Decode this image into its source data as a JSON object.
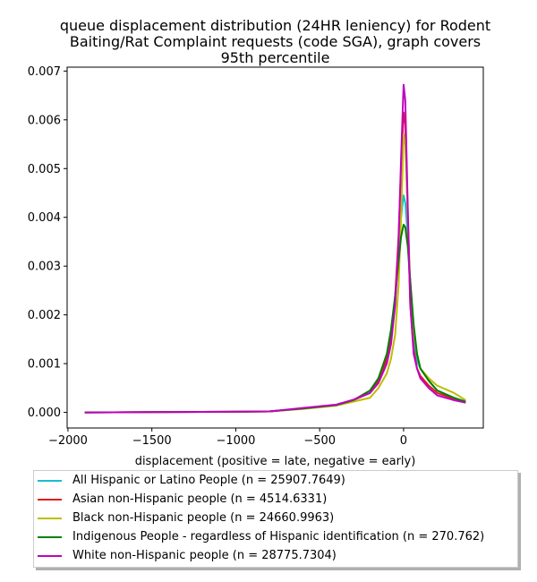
{
  "chart_data": {
    "type": "line",
    "title_lines": [
      "queue displacement distribution (24HR leniency) for Rodent",
      "Baiting/Rat Complaint  requests (code SGA), graph covers",
      "95th percentile"
    ],
    "xlabel": "displacement (positive = late, negative = early)",
    "ylabel": "",
    "xlim": [
      -2005,
      475
    ],
    "ylim": [
      -0.00032,
      0.00708
    ],
    "x_ticks": [
      -2000,
      -1500,
      -1000,
      -500,
      0
    ],
    "x_tick_labels": [
      "−2000",
      "−1500",
      "−1000",
      "−500",
      "0"
    ],
    "y_ticks": [
      0,
      0.001,
      0.002,
      0.003,
      0.004,
      0.005,
      0.006,
      0.007
    ],
    "y_tick_labels": [
      "0.000",
      "0.001",
      "0.002",
      "0.003",
      "0.004",
      "0.005",
      "0.006",
      "0.007"
    ],
    "grid": false,
    "legend_position": "below",
    "series": [
      {
        "name": "All Hispanic or Latino People (n = 25907.7649)",
        "color": "#17becf",
        "points": [
          [
            -1900,
            0
          ],
          [
            -1500,
            5e-06
          ],
          [
            -1200,
            1e-05
          ],
          [
            -800,
            2e-05
          ],
          [
            -600,
            8e-05
          ],
          [
            -400,
            0.00015
          ],
          [
            -300,
            0.00025
          ],
          [
            -200,
            0.0004
          ],
          [
            -150,
            0.00065
          ],
          [
            -100,
            0.0011
          ],
          [
            -75,
            0.0015
          ],
          [
            -50,
            0.0023
          ],
          [
            -30,
            0.0032
          ],
          [
            -15,
            0.004
          ],
          [
            0,
            0.00445
          ],
          [
            10,
            0.0043
          ],
          [
            25,
            0.0036
          ],
          [
            40,
            0.0024
          ],
          [
            60,
            0.0015
          ],
          [
            80,
            0.00105
          ],
          [
            100,
            0.0009
          ],
          [
            150,
            0.00065
          ],
          [
            200,
            0.00045
          ],
          [
            300,
            0.0003
          ],
          [
            370,
            0.00022
          ]
        ]
      },
      {
        "name": "Asian non-Hispanic people (n = 4514.6331)",
        "color": "#e41a1c",
        "points": [
          [
            -1900,
            0
          ],
          [
            -1500,
            5e-06
          ],
          [
            -1200,
            1e-05
          ],
          [
            -800,
            2e-05
          ],
          [
            -600,
            8e-05
          ],
          [
            -400,
            0.00015
          ],
          [
            -300,
            0.00025
          ],
          [
            -200,
            0.0004
          ],
          [
            -150,
            0.00065
          ],
          [
            -100,
            0.0011
          ],
          [
            -75,
            0.0015
          ],
          [
            -50,
            0.0024
          ],
          [
            -30,
            0.0036
          ],
          [
            -15,
            0.005
          ],
          [
            0,
            0.00615
          ],
          [
            10,
            0.0059
          ],
          [
            25,
            0.004
          ],
          [
            40,
            0.0022
          ],
          [
            60,
            0.0013
          ],
          [
            80,
            0.0009
          ],
          [
            100,
            0.00075
          ],
          [
            150,
            0.00055
          ],
          [
            200,
            0.0004
          ],
          [
            300,
            0.00028
          ],
          [
            370,
            0.0002
          ]
        ]
      },
      {
        "name": "Black non-Hispanic people (n = 24660.9963)",
        "color": "#bcbd00",
        "points": [
          [
            -1900,
            0
          ],
          [
            -1500,
            5e-06
          ],
          [
            -1200,
            1e-05
          ],
          [
            -800,
            2e-05
          ],
          [
            -600,
            7e-05
          ],
          [
            -400,
            0.00014
          ],
          [
            -300,
            0.00022
          ],
          [
            -200,
            0.0003
          ],
          [
            -150,
            0.0005
          ],
          [
            -100,
            0.0008
          ],
          [
            -75,
            0.0011
          ],
          [
            -50,
            0.0016
          ],
          [
            -30,
            0.0026
          ],
          [
            -15,
            0.004
          ],
          [
            0,
            0.0057
          ],
          [
            10,
            0.0055
          ],
          [
            25,
            0.004
          ],
          [
            40,
            0.0026
          ],
          [
            60,
            0.0017
          ],
          [
            80,
            0.0012
          ],
          [
            100,
            0.0009
          ],
          [
            150,
            0.0007
          ],
          [
            200,
            0.00055
          ],
          [
            300,
            0.0004
          ],
          [
            370,
            0.00025
          ]
        ]
      },
      {
        "name": "Indigenous People - regardless of Hispanic identification (n = 270.762)",
        "color": "#008000",
        "points": [
          [
            -1900,
            0
          ],
          [
            -1500,
            5e-06
          ],
          [
            -1200,
            1e-05
          ],
          [
            -800,
            2e-05
          ],
          [
            -600,
            8e-05
          ],
          [
            -400,
            0.00015
          ],
          [
            -300,
            0.00025
          ],
          [
            -200,
            0.00045
          ],
          [
            -150,
            0.0007
          ],
          [
            -100,
            0.0012
          ],
          [
            -75,
            0.0017
          ],
          [
            -50,
            0.0024
          ],
          [
            -30,
            0.0031
          ],
          [
            -15,
            0.0036
          ],
          [
            0,
            0.00385
          ],
          [
            10,
            0.0038
          ],
          [
            25,
            0.0034
          ],
          [
            40,
            0.0027
          ],
          [
            60,
            0.0018
          ],
          [
            80,
            0.0012
          ],
          [
            100,
            0.0009
          ],
          [
            150,
            0.00065
          ],
          [
            200,
            0.00045
          ],
          [
            300,
            0.0003
          ],
          [
            370,
            0.00022
          ]
        ]
      },
      {
        "name": "White non-Hispanic people (n = 28775.7304)",
        "color": "#c000c0",
        "points": [
          [
            -1900,
            0
          ],
          [
            -1500,
            5e-06
          ],
          [
            -1200,
            1e-05
          ],
          [
            -800,
            2e-05
          ],
          [
            -600,
            9e-05
          ],
          [
            -400,
            0.00016
          ],
          [
            -300,
            0.00026
          ],
          [
            -200,
            0.0004
          ],
          [
            -150,
            0.0006
          ],
          [
            -100,
            0.001
          ],
          [
            -75,
            0.0014
          ],
          [
            -50,
            0.0022
          ],
          [
            -30,
            0.0035
          ],
          [
            -15,
            0.0052
          ],
          [
            0,
            0.00672
          ],
          [
            10,
            0.0064
          ],
          [
            25,
            0.0042
          ],
          [
            40,
            0.0022
          ],
          [
            60,
            0.0012
          ],
          [
            80,
            0.0009
          ],
          [
            100,
            0.0007
          ],
          [
            150,
            0.0005
          ],
          [
            200,
            0.00035
          ],
          [
            300,
            0.00025
          ],
          [
            370,
            0.0002
          ]
        ]
      }
    ]
  }
}
